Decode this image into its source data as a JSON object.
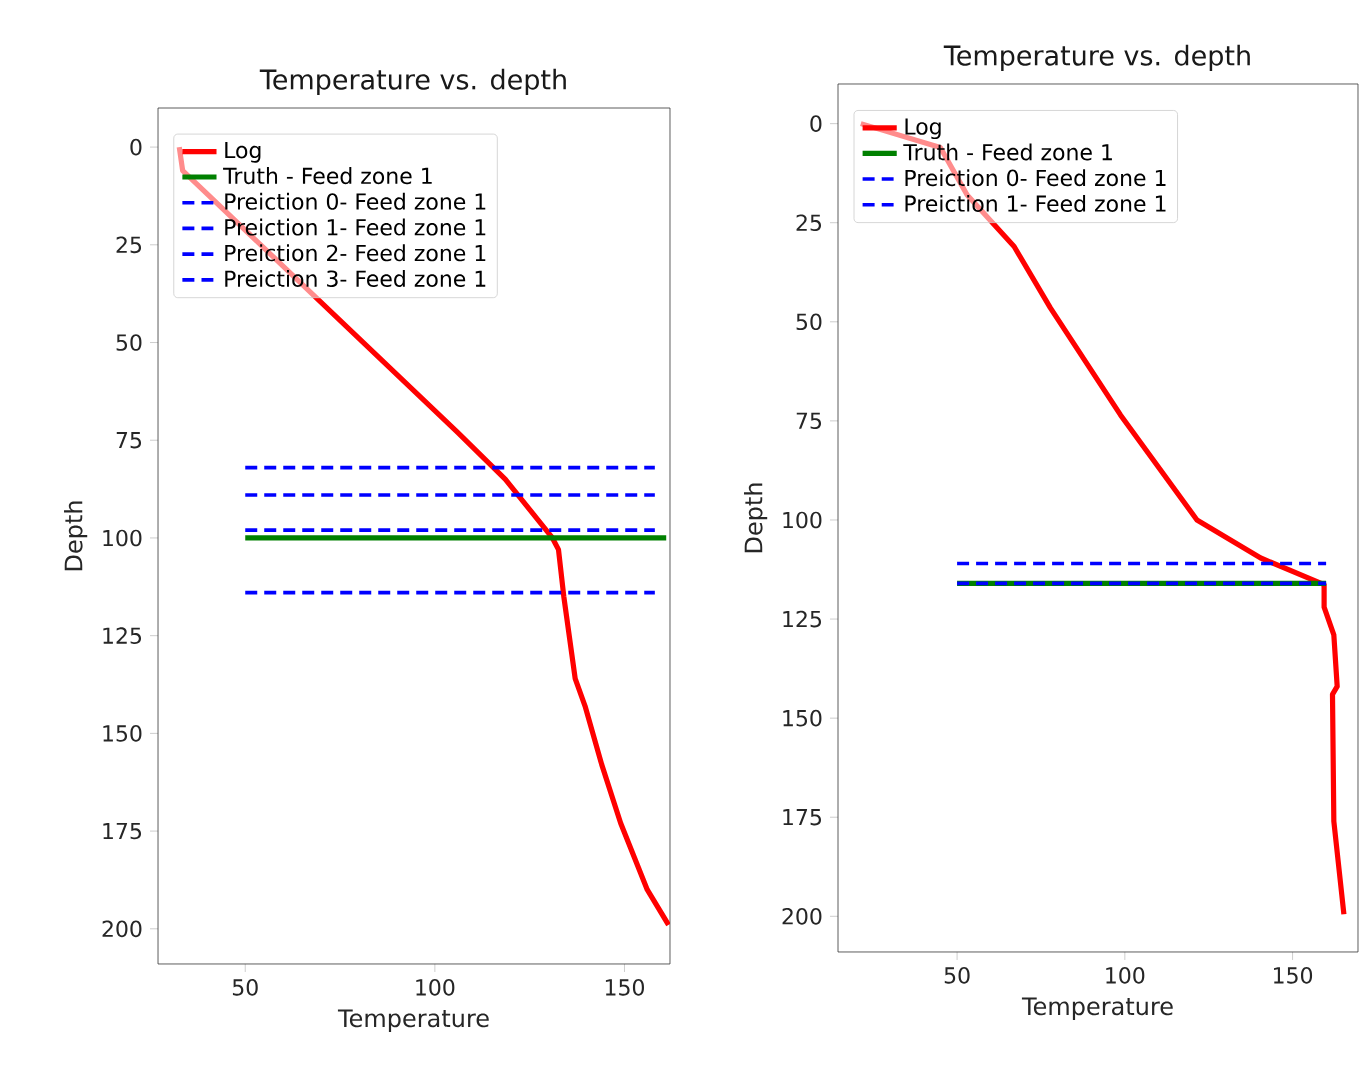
{
  "chart_data": [
    {
      "type": "line",
      "title": "Temperature vs. depth",
      "xlabel": "Temperature",
      "ylabel": "Depth",
      "xlim": [
        27,
        162
      ],
      "ylim": [
        209,
        -10
      ],
      "xticks": [
        50,
        100,
        150
      ],
      "yticks": [
        0,
        25,
        50,
        75,
        100,
        125,
        150,
        175,
        200
      ],
      "legend": "top left",
      "grid": false,
      "marker": "none",
      "series": [
        {
          "name": "Log",
          "color": "#ff0000",
          "line_style": "solid",
          "x": [
            32.6,
            33.5,
            106,
            118.6,
            131,
            132.6,
            134,
            137,
            139.6,
            144,
            149,
            156,
            161.6
          ],
          "values": [
            0,
            6,
            73,
            85,
            100,
            103,
            115,
            136,
            143,
            158,
            173,
            190,
            199
          ]
        },
        {
          "name": "Truth - Feed zone 1",
          "color": "#008000",
          "line_style": "solid",
          "x": [
            50,
            161
          ],
          "values": [
            100,
            100
          ]
        },
        {
          "name": "Preiction 0- Feed zone 1",
          "color": "#0000ff",
          "line_style": "dashed",
          "x": [
            50,
            158
          ],
          "values": [
            82,
            82
          ]
        },
        {
          "name": "Preiction 1- Feed zone 1",
          "color": "#0000ff",
          "line_style": "dashed",
          "x": [
            50,
            158
          ],
          "values": [
            89,
            89
          ]
        },
        {
          "name": "Preiction 2- Feed zone 1",
          "color": "#0000ff",
          "line_style": "dashed",
          "x": [
            50,
            158
          ],
          "values": [
            98,
            98
          ]
        },
        {
          "name": "Preiction 3- Feed zone 1",
          "color": "#0000ff",
          "line_style": "dashed",
          "x": [
            50,
            158
          ],
          "values": [
            114,
            114
          ]
        }
      ]
    },
    {
      "type": "line",
      "title": "Temperature vs. depth",
      "xlabel": "Temperature",
      "ylabel": "Depth",
      "xlim": [
        14.5,
        169.5
      ],
      "ylim": [
        209,
        -10
      ],
      "xticks": [
        50,
        100,
        150
      ],
      "yticks": [
        0,
        25,
        50,
        75,
        100,
        125,
        150,
        175,
        200
      ],
      "legend": "top left",
      "grid": false,
      "marker": "none",
      "series": [
        {
          "name": "Log",
          "color": "#ff0000",
          "line_style": "solid",
          "x": [
            21.3,
            45,
            53,
            67,
            77.8,
            98.7,
            121.5,
            140.5,
            159.4,
            159.4,
            162.3,
            163.3,
            161.9,
            162.3,
            165.3
          ],
          "values": [
            0,
            6,
            18,
            31,
            46.5,
            73.5,
            100,
            109.6,
            116.3,
            122,
            129,
            142,
            144,
            176,
            199.5
          ]
        },
        {
          "name": "Truth - Feed zone 1",
          "color": "#008000",
          "line_style": "solid",
          "x": [
            50,
            160
          ],
          "values": [
            116,
            116
          ]
        },
        {
          "name": "Preiction 0- Feed zone 1",
          "color": "#0000ff",
          "line_style": "dashed",
          "x": [
            50,
            160
          ],
          "values": [
            111,
            111
          ]
        },
        {
          "name": "Preiction 1- Feed zone 1",
          "color": "#0000ff",
          "line_style": "dashed",
          "x": [
            50,
            160
          ],
          "values": [
            116,
            116
          ]
        }
      ]
    }
  ]
}
